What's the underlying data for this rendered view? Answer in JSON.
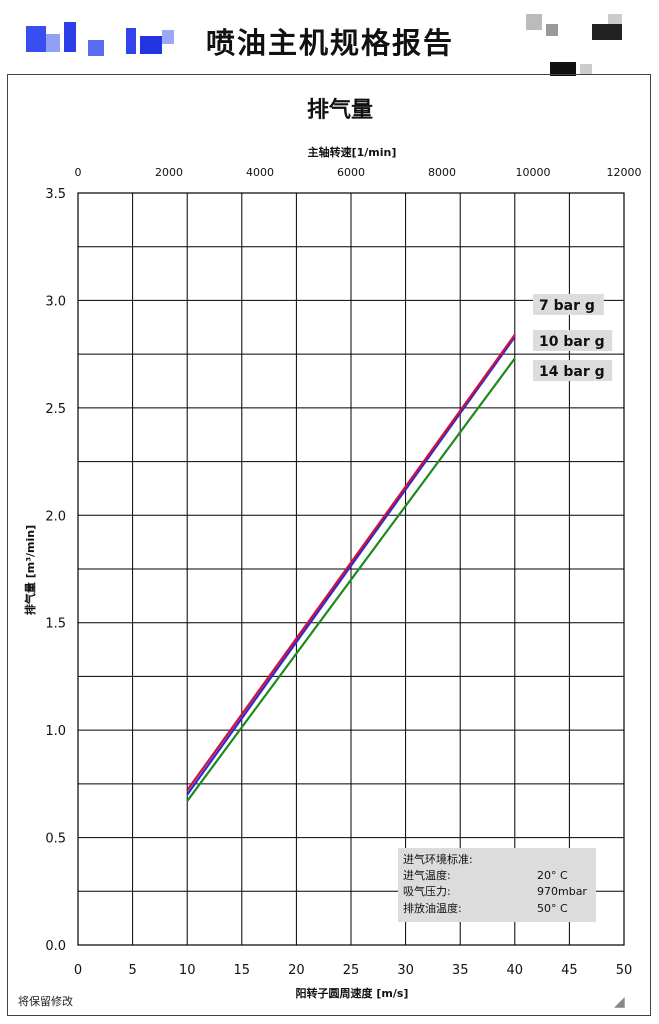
{
  "header": {
    "title": "喷油主机规格报告"
  },
  "footer": {
    "note": "将保留修改"
  },
  "legend_notes": {
    "heading": "进气环境标准:",
    "rows": [
      {
        "label": "进气温度:",
        "value": "20° C"
      },
      {
        "label": "吸气压力:",
        "value": "970mbar"
      },
      {
        "label": "排放油温度:",
        "value": "50° C"
      }
    ]
  },
  "colors": {
    "series_7bar": "#d0103a",
    "series_10bar": "#2a2ad8",
    "series_14bar": "#1e8a1e",
    "grid": "#000000",
    "label_box": "#dcdcdc"
  },
  "chart_data": {
    "type": "line",
    "title": "排气量",
    "xlabel": "阳转子圆周速度 [m/s]",
    "ylabel": "排气量 [m³/min]",
    "x2label": "主轴转速[1/min]",
    "xlim": [
      0,
      50
    ],
    "ylim": [
      0,
      3.5
    ],
    "x2lim": [
      0,
      12000
    ],
    "x_ticks": [
      0,
      5,
      10,
      15,
      20,
      25,
      30,
      35,
      40,
      45,
      50
    ],
    "y_ticks": [
      "0.0",
      "0.5",
      "1.0",
      "1.5",
      "2.0",
      "2.5",
      "3.0",
      "3.5"
    ],
    "x2_ticks": [
      0,
      2000,
      4000,
      6000,
      8000,
      10000,
      12000
    ],
    "grid": true,
    "legend_placement": "right, near line ends",
    "series": [
      {
        "name": "7 bar g",
        "color_key": "series_7bar",
        "x": [
          10,
          40
        ],
        "y": [
          0.72,
          2.84
        ]
      },
      {
        "name": "10 bar g",
        "color_key": "series_10bar",
        "x": [
          10,
          40
        ],
        "y": [
          0.7,
          2.83
        ]
      },
      {
        "name": "14 bar g",
        "color_key": "series_14bar",
        "x": [
          10,
          40
        ],
        "y": [
          0.67,
          2.73
        ]
      }
    ]
  }
}
